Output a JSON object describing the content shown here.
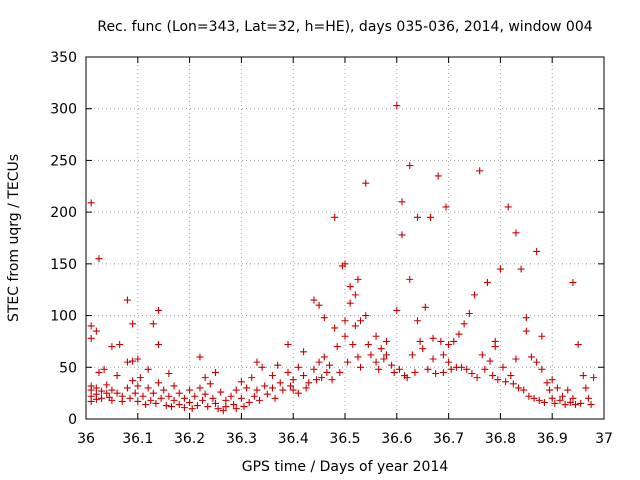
{
  "chart_data": {
    "type": "scatter",
    "title": "Rec. func (Lon=343, Lat=32, h=HE), days 035-036, 2014, window 004",
    "xlabel": "GPS time / Days of year 2014",
    "ylabel": "STEC from uqrg / TECUs",
    "xlim": [
      36,
      37
    ],
    "ylim": [
      0,
      350
    ],
    "x_ticks": [
      36,
      36.1,
      36.2,
      36.3,
      36.4,
      36.5,
      36.6,
      36.7,
      36.8,
      36.9,
      37
    ],
    "x_tick_labels": [
      "36",
      "36.1",
      "36.2",
      "36.3",
      "36.4",
      "36.5",
      "36.6",
      "36.7",
      "36.8",
      "36.9",
      "37"
    ],
    "y_ticks": [
      0,
      50,
      100,
      150,
      200,
      250,
      300,
      350
    ],
    "y_tick_labels": [
      "0",
      "50",
      "100",
      "150",
      "200",
      "250",
      "300",
      "350"
    ],
    "grid": true,
    "marker": "+",
    "color": "#cc0000",
    "series": [
      {
        "name": "STEC",
        "points": [
          [
            36.01,
            209
          ],
          [
            36.01,
            90
          ],
          [
            36.01,
            78
          ],
          [
            36.01,
            32
          ],
          [
            36.01,
            28
          ],
          [
            36.01,
            22
          ],
          [
            36.01,
            17
          ],
          [
            36.02,
            85
          ],
          [
            36.02,
            30
          ],
          [
            36.02,
            24
          ],
          [
            36.02,
            19
          ],
          [
            36.025,
            155
          ],
          [
            36.025,
            45
          ],
          [
            36.03,
            27
          ],
          [
            36.03,
            20
          ],
          [
            36.035,
            48
          ],
          [
            36.04,
            33
          ],
          [
            36.04,
            25
          ],
          [
            36.045,
            21
          ],
          [
            36.05,
            70
          ],
          [
            36.05,
            28
          ],
          [
            36.05,
            18
          ],
          [
            36.06,
            42
          ],
          [
            36.06,
            25
          ],
          [
            36.065,
            72
          ],
          [
            36.07,
            22
          ],
          [
            36.07,
            17
          ],
          [
            36.08,
            115
          ],
          [
            36.08,
            55
          ],
          [
            36.08,
            30
          ],
          [
            36.085,
            20
          ],
          [
            36.09,
            92
          ],
          [
            36.09,
            56
          ],
          [
            36.09,
            37
          ],
          [
            36.095,
            25
          ],
          [
            36.1,
            58
          ],
          [
            36.1,
            32
          ],
          [
            36.1,
            17
          ],
          [
            36.105,
            40
          ],
          [
            36.11,
            22
          ],
          [
            36.115,
            14
          ],
          [
            36.12,
            48
          ],
          [
            36.12,
            30
          ],
          [
            36.125,
            18
          ],
          [
            36.13,
            92
          ],
          [
            36.13,
            25
          ],
          [
            36.135,
            15
          ],
          [
            36.14,
            105
          ],
          [
            36.14,
            72
          ],
          [
            36.14,
            35
          ],
          [
            36.145,
            20
          ],
          [
            36.15,
            28
          ],
          [
            36.155,
            13
          ],
          [
            36.16,
            44
          ],
          [
            36.16,
            22
          ],
          [
            36.165,
            12
          ],
          [
            36.17,
            32
          ],
          [
            36.17,
            18
          ],
          [
            36.18,
            25
          ],
          [
            36.18,
            14
          ],
          [
            36.19,
            20
          ],
          [
            36.19,
            11
          ],
          [
            36.2,
            28
          ],
          [
            36.2,
            16
          ],
          [
            36.205,
            10
          ],
          [
            36.21,
            22
          ],
          [
            36.215,
            13
          ],
          [
            36.22,
            60
          ],
          [
            36.22,
            30
          ],
          [
            36.225,
            18
          ],
          [
            36.23,
            40
          ],
          [
            36.23,
            24
          ],
          [
            36.235,
            12
          ],
          [
            36.24,
            34
          ],
          [
            36.245,
            20
          ],
          [
            36.25,
            45
          ],
          [
            36.25,
            15
          ],
          [
            36.255,
            10
          ],
          [
            36.26,
            26
          ],
          [
            36.265,
            8
          ],
          [
            36.27,
            18
          ],
          [
            36.27,
            12
          ],
          [
            36.28,
            22
          ],
          [
            36.285,
            14
          ],
          [
            36.29,
            28
          ],
          [
            36.29,
            10
          ],
          [
            36.3,
            36
          ],
          [
            36.3,
            20
          ],
          [
            36.305,
            12
          ],
          [
            36.31,
            30
          ],
          [
            36.315,
            16
          ],
          [
            36.32,
            40
          ],
          [
            36.325,
            22
          ],
          [
            36.33,
            55
          ],
          [
            36.33,
            28
          ],
          [
            36.335,
            18
          ],
          [
            36.34,
            50
          ],
          [
            36.345,
            32
          ],
          [
            36.35,
            24
          ],
          [
            36.36,
            42
          ],
          [
            36.36,
            30
          ],
          [
            36.365,
            20
          ],
          [
            36.37,
            52
          ],
          [
            36.375,
            35
          ],
          [
            36.38,
            28
          ],
          [
            36.39,
            72
          ],
          [
            36.39,
            45
          ],
          [
            36.395,
            32
          ],
          [
            36.4,
            38
          ],
          [
            36.4,
            28
          ],
          [
            36.41,
            50
          ],
          [
            36.41,
            25
          ],
          [
            36.42,
            65
          ],
          [
            36.42,
            42
          ],
          [
            36.425,
            30
          ],
          [
            36.43,
            35
          ],
          [
            36.44,
            115
          ],
          [
            36.44,
            48
          ],
          [
            36.445,
            38
          ],
          [
            36.45,
            110
          ],
          [
            36.45,
            55
          ],
          [
            36.455,
            40
          ],
          [
            36.46,
            98
          ],
          [
            36.46,
            60
          ],
          [
            36.465,
            45
          ],
          [
            36.47,
            52
          ],
          [
            36.475,
            38
          ],
          [
            36.48,
            195
          ],
          [
            36.48,
            88
          ],
          [
            36.485,
            70
          ],
          [
            36.49,
            45
          ],
          [
            36.495,
            148
          ],
          [
            36.5,
            150
          ],
          [
            36.5,
            95
          ],
          [
            36.5,
            80
          ],
          [
            36.505,
            55
          ],
          [
            36.51,
            128
          ],
          [
            36.51,
            112
          ],
          [
            36.515,
            72
          ],
          [
            36.52,
            120
          ],
          [
            36.52,
            90
          ],
          [
            36.525,
            135
          ],
          [
            36.525,
            60
          ],
          [
            36.53,
            95
          ],
          [
            36.53,
            50
          ],
          [
            36.54,
            228
          ],
          [
            36.54,
            100
          ],
          [
            36.545,
            72
          ],
          [
            36.55,
            62
          ],
          [
            36.56,
            80
          ],
          [
            36.56,
            55
          ],
          [
            36.565,
            48
          ],
          [
            36.57,
            68
          ],
          [
            36.575,
            58
          ],
          [
            36.58,
            75
          ],
          [
            36.58,
            62
          ],
          [
            36.59,
            52
          ],
          [
            36.595,
            45
          ],
          [
            36.6,
            303
          ],
          [
            36.6,
            105
          ],
          [
            36.605,
            48
          ],
          [
            36.61,
            210
          ],
          [
            36.61,
            178
          ],
          [
            36.615,
            42
          ],
          [
            36.62,
            40
          ],
          [
            36.625,
            245
          ],
          [
            36.625,
            135
          ],
          [
            36.63,
            62
          ],
          [
            36.635,
            45
          ],
          [
            36.64,
            195
          ],
          [
            36.64,
            95
          ],
          [
            36.645,
            75
          ],
          [
            36.65,
            68
          ],
          [
            36.655,
            108
          ],
          [
            36.66,
            48
          ],
          [
            36.665,
            195
          ],
          [
            36.67,
            78
          ],
          [
            36.67,
            58
          ],
          [
            36.675,
            44
          ],
          [
            36.68,
            235
          ],
          [
            36.685,
            75
          ],
          [
            36.69,
            62
          ],
          [
            36.69,
            45
          ],
          [
            36.695,
            205
          ],
          [
            36.7,
            72
          ],
          [
            36.7,
            55
          ],
          [
            36.705,
            48
          ],
          [
            36.71,
            75
          ],
          [
            36.715,
            50
          ],
          [
            36.72,
            82
          ],
          [
            36.725,
            50
          ],
          [
            36.73,
            92
          ],
          [
            36.735,
            48
          ],
          [
            36.74,
            102
          ],
          [
            36.745,
            44
          ],
          [
            36.75,
            120
          ],
          [
            36.755,
            40
          ],
          [
            36.76,
            240
          ],
          [
            36.765,
            62
          ],
          [
            36.77,
            48
          ],
          [
            36.775,
            132
          ],
          [
            36.78,
            56
          ],
          [
            36.785,
            42
          ],
          [
            36.79,
            75
          ],
          [
            36.79,
            70
          ],
          [
            36.795,
            38
          ],
          [
            36.8,
            145
          ],
          [
            36.805,
            50
          ],
          [
            36.81,
            36
          ],
          [
            36.815,
            205
          ],
          [
            36.82,
            42
          ],
          [
            36.825,
            34
          ],
          [
            36.83,
            180
          ],
          [
            36.83,
            58
          ],
          [
            36.835,
            30
          ],
          [
            36.84,
            145
          ],
          [
            36.845,
            28
          ],
          [
            36.85,
            98
          ],
          [
            36.85,
            85
          ],
          [
            36.855,
            22
          ],
          [
            36.86,
            60
          ],
          [
            36.865,
            20
          ],
          [
            36.87,
            162
          ],
          [
            36.87,
            55
          ],
          [
            36.875,
            18
          ],
          [
            36.88,
            80
          ],
          [
            36.88,
            48
          ],
          [
            36.885,
            16
          ],
          [
            36.89,
            35
          ],
          [
            36.895,
            28
          ],
          [
            36.9,
            38
          ],
          [
            36.9,
            20
          ],
          [
            36.905,
            15
          ],
          [
            36.91,
            30
          ],
          [
            36.915,
            18
          ],
          [
            36.92,
            22
          ],
          [
            36.925,
            14
          ],
          [
            36.93,
            28
          ],
          [
            36.935,
            16
          ],
          [
            36.94,
            132
          ],
          [
            36.94,
            20
          ],
          [
            36.945,
            14
          ],
          [
            36.95,
            72
          ],
          [
            36.955,
            15
          ],
          [
            36.96,
            42
          ],
          [
            36.965,
            30
          ],
          [
            36.97,
            20
          ],
          [
            36.975,
            14
          ],
          [
            36.98,
            40
          ]
        ]
      }
    ]
  }
}
